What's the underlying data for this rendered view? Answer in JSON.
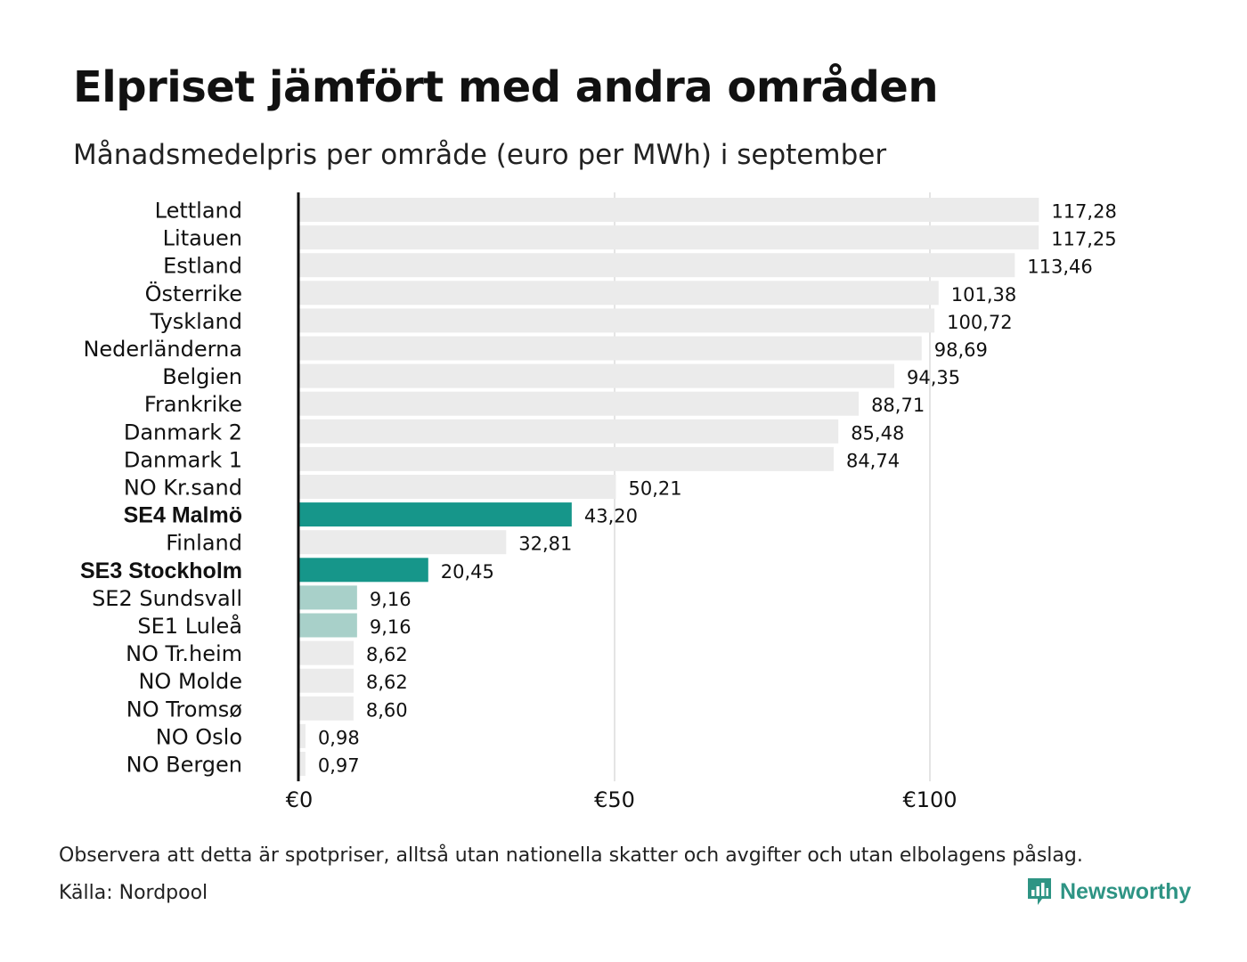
{
  "header": {
    "title": "Elpriset jämfört med andra områden",
    "subtitle": "Månadsmedelpris per område (euro per MWh) i september"
  },
  "footer": {
    "note": "Observera att detta är spotpriser, alltså utan nationella skatter och avgifter och utan elbolagens påslag.",
    "source": "Källa: Nordpool",
    "brand": "Newsworthy",
    "brand_icon": "bar-chart-speech-bubble-icon"
  },
  "colors": {
    "default_bar": "#ebebeb",
    "highlight_bar": "#16968a",
    "light_highlight_bar": "#a8d0c9",
    "axis": "#111111",
    "grid": "#c8c8c8",
    "brand": "#2e9484"
  },
  "chart_data": {
    "type": "bar",
    "orientation": "horizontal",
    "title": "Elpriset jämfört med andra områden",
    "subtitle": "Månadsmedelpris per område (euro per MWh) i september",
    "xlim": [
      0,
      120
    ],
    "x_ticks": [
      0,
      50,
      100
    ],
    "x_tick_labels": [
      "€0",
      "€50",
      "€100"
    ],
    "grid": true,
    "categories": [
      "Lettland",
      "Litauen",
      "Estland",
      "Österrike",
      "Tyskland",
      "Nederländerna",
      "Belgien",
      "Frankrike",
      "Danmark  2",
      "Danmark  1",
      "NO Kr.sand",
      "SE4 Malmö",
      "Finland",
      "SE3 Stockholm",
      "SE2  Sundsvall",
      "SE1  Luleå",
      "NO Tr.heim",
      "NO Molde",
      "NO Tromsø",
      "NO Oslo",
      "NO Bergen"
    ],
    "values": [
      117.28,
      117.25,
      113.46,
      101.38,
      100.72,
      98.69,
      94.35,
      88.71,
      85.48,
      84.74,
      50.21,
      43.2,
      32.81,
      20.45,
      9.16,
      9.16,
      8.62,
      8.62,
      8.6,
      0.98,
      0.97
    ],
    "value_labels": [
      "117,28",
      "117,25",
      "113,46",
      "101,38",
      "100,72",
      "98,69",
      "94,35",
      "88,71",
      "85,48",
      "84,74",
      "50,21",
      "43,20",
      "32,81",
      "20,45",
      "9,16",
      "9,16",
      "8,62",
      "8,62",
      "8,60",
      "0,98",
      "0,97"
    ],
    "highlight": [
      "none",
      "none",
      "none",
      "none",
      "none",
      "none",
      "none",
      "none",
      "none",
      "none",
      "none",
      "strong",
      "none",
      "strong",
      "light",
      "light",
      "none",
      "none",
      "none",
      "none",
      "none"
    ],
    "bold_labels": [
      "SE4 Malmö",
      "SE3 Stockholm"
    ]
  }
}
